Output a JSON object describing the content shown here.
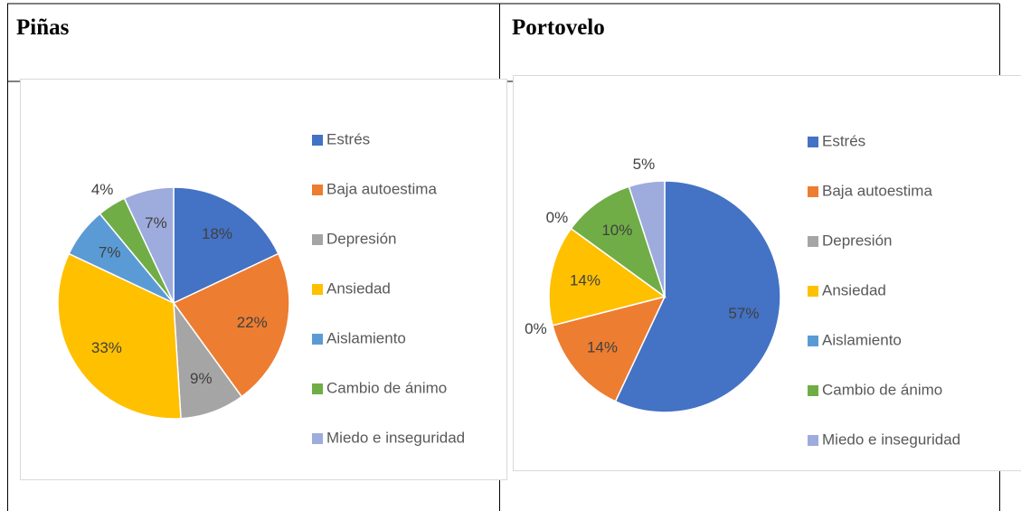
{
  "table": {
    "headers": [
      "Piñas",
      "Portovelo"
    ]
  },
  "chart_data": [
    {
      "type": "pie",
      "categories": [
        "Estrés",
        "Baja autoestima",
        "Depresión",
        "Ansiedad",
        "Aislamiento",
        "Cambio de ánimo",
        "Miedo e inseguridad"
      ],
      "values": [
        18,
        22,
        9,
        33,
        7,
        4,
        7
      ],
      "value_labels": [
        "18%",
        "22%",
        "9%",
        "33%",
        "7%",
        "4%",
        "7%"
      ],
      "colors": [
        "#4472c4",
        "#ed7d31",
        "#a5a5a5",
        "#ffc000",
        "#5b9bd5",
        "#70ad47",
        "#9dabdd"
      ],
      "legend": "right"
    },
    {
      "type": "pie",
      "categories": [
        "Estrés",
        "Baja autoestima",
        "Depresión",
        "Ansiedad",
        "Aislamiento",
        "Cambio de ánimo",
        "Miedo e inseguridad"
      ],
      "values": [
        57,
        14,
        0,
        14,
        0,
        10,
        5
      ],
      "value_labels": [
        "57%",
        "14%",
        "0%",
        "14%",
        "0%",
        "10%",
        "5%"
      ],
      "colors": [
        "#4472c4",
        "#ed7d31",
        "#a5a5a5",
        "#ffc000",
        "#5b9bd5",
        "#70ad47",
        "#9dabdd"
      ],
      "legend": "right"
    }
  ]
}
